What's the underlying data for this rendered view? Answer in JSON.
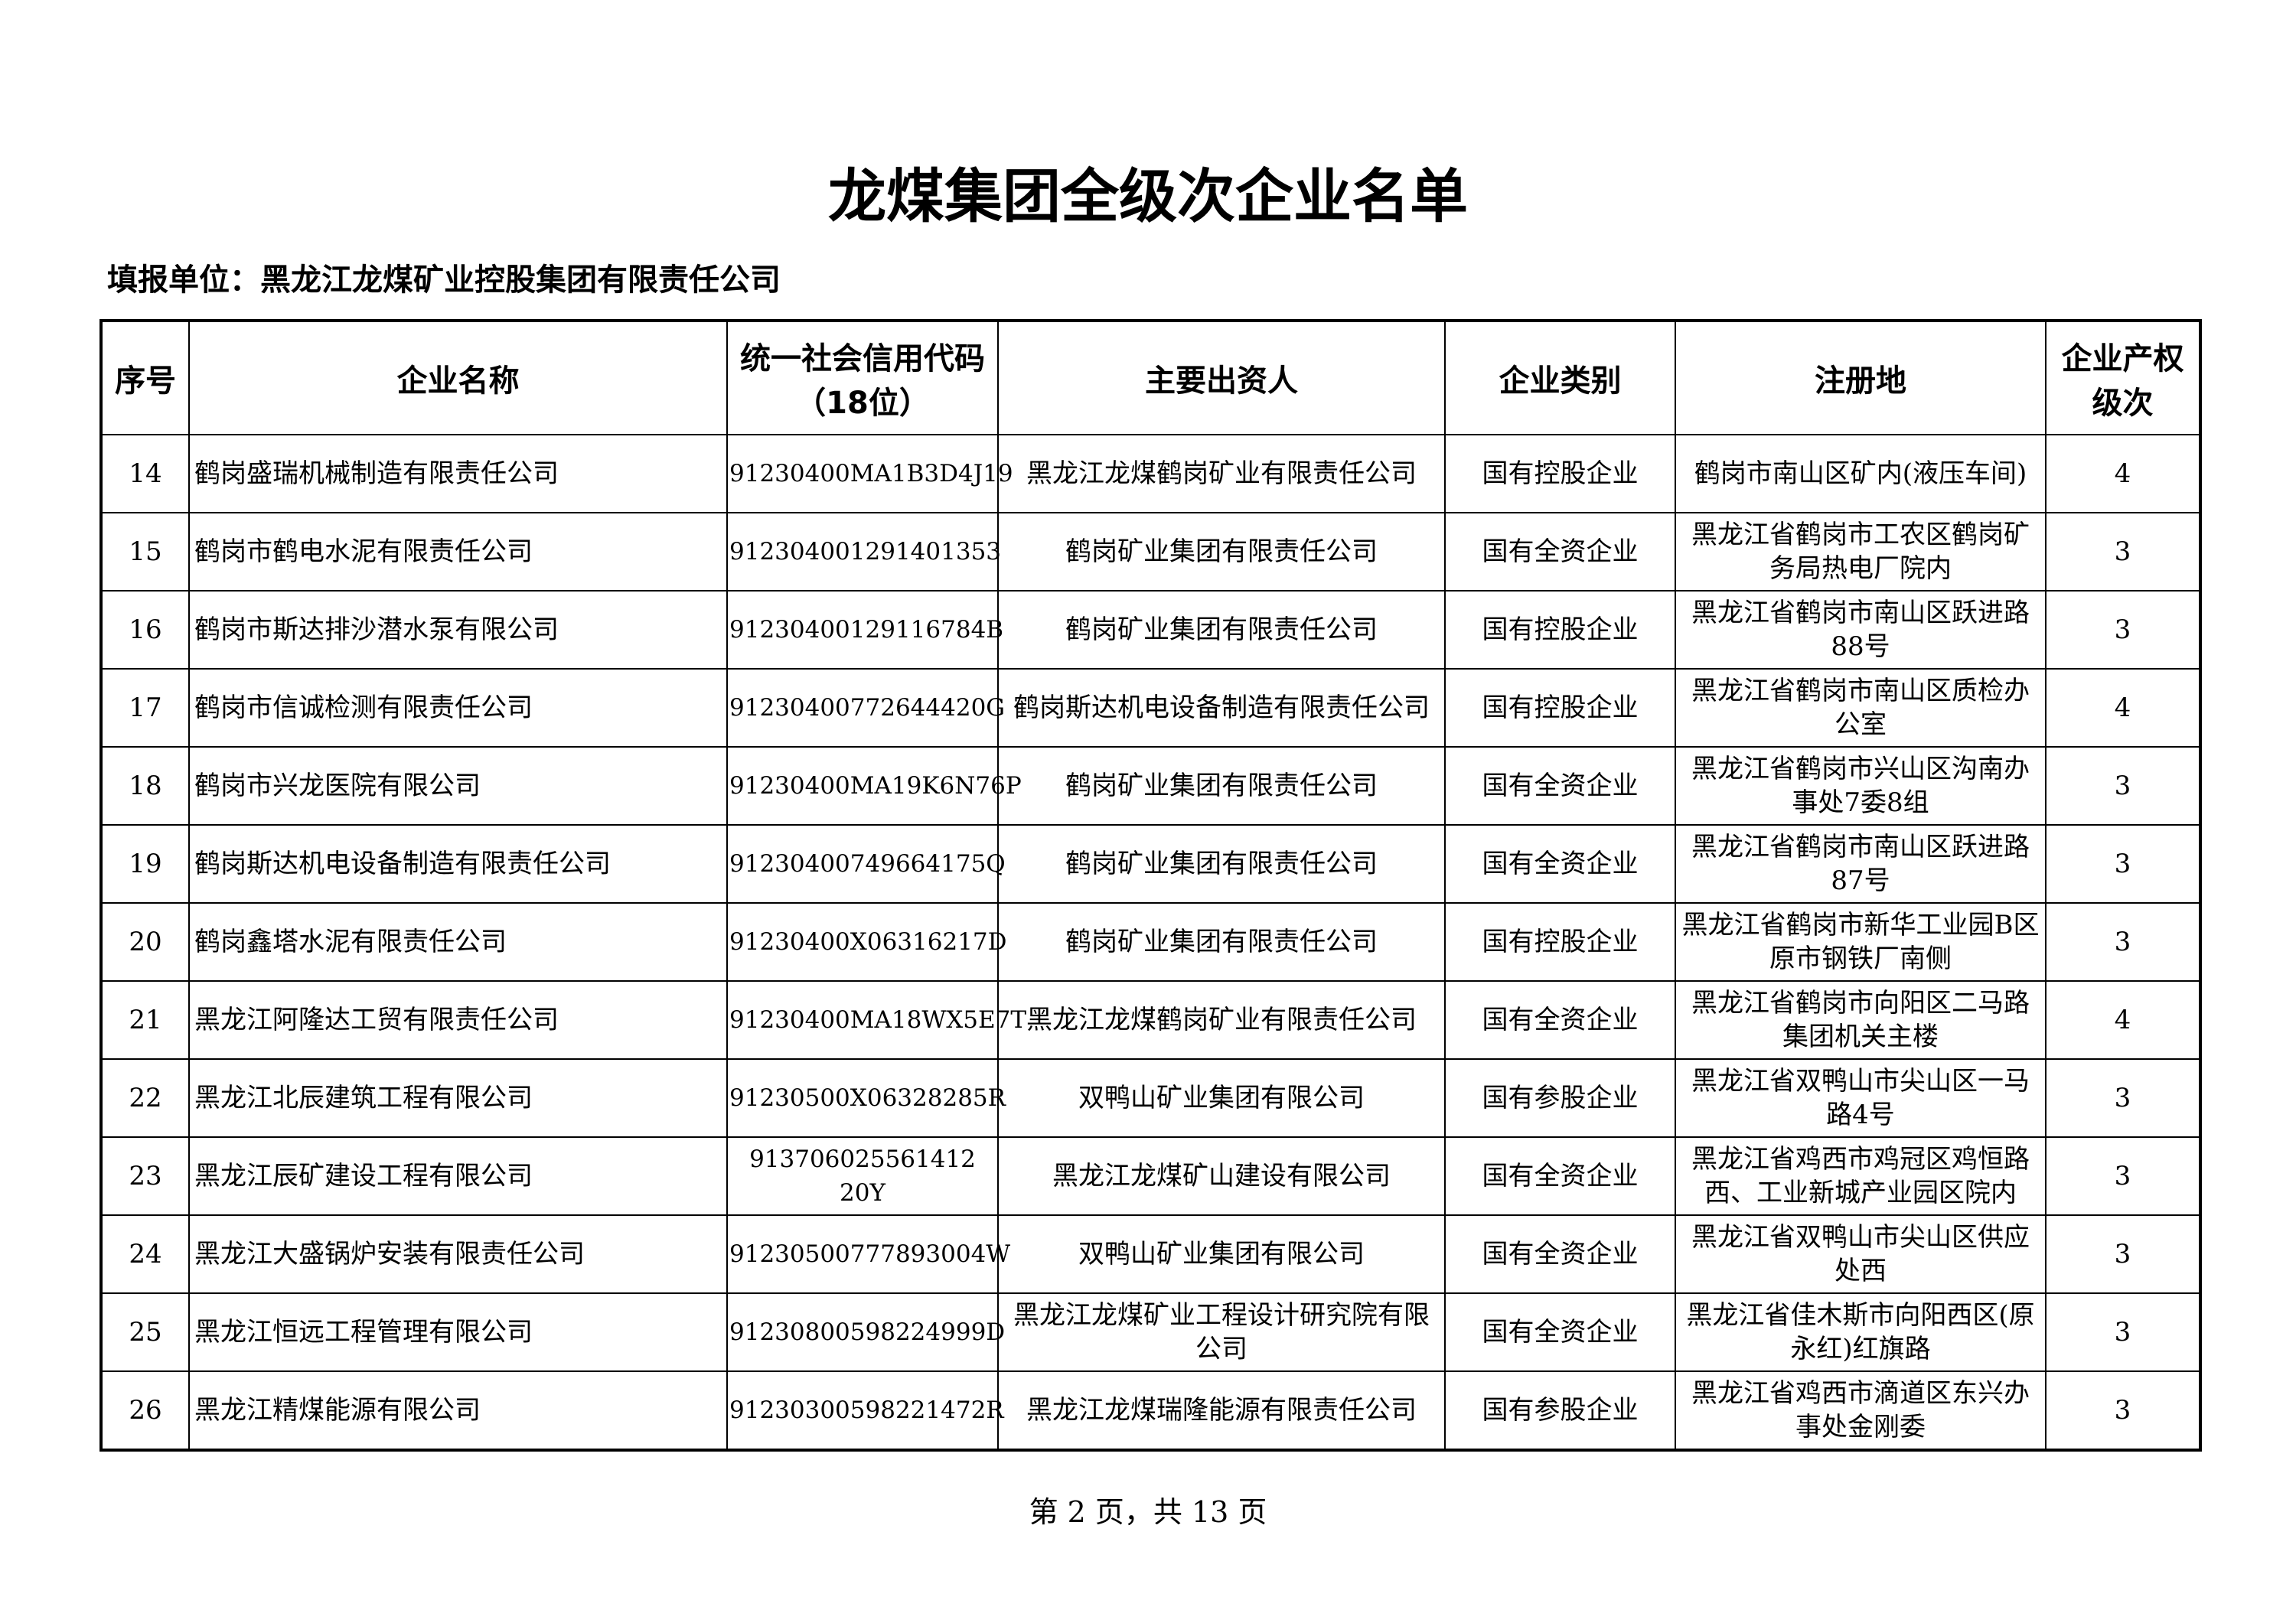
{
  "header": {
    "title": "龙煤集团全级次企业名单",
    "reporting_unit": "填报单位：黑龙江龙煤矿业控股集团有限责任公司"
  },
  "table": {
    "columns": [
      "序号",
      "企业名称",
      "统一社会信用代码（18位）",
      "主要出资人",
      "企业类别",
      "注册地",
      "企业产权级次"
    ],
    "rows": [
      [
        "14",
        "鹤岗盛瑞机械制造有限责任公司",
        "91230400MA1B3D4J19",
        "黑龙江龙煤鹤岗矿业有限责任公司",
        "国有控股企业",
        "鹤岗市南山区矿内(液压车间)",
        "4"
      ],
      [
        "15",
        "鹤岗市鹤电水泥有限责任公司",
        "912304001291401353",
        "鹤岗矿业集团有限责任公司",
        "国有全资企业",
        "黑龙江省鹤岗市工农区鹤岗矿务局热电厂院内",
        "3"
      ],
      [
        "16",
        "鹤岗市斯达排沙潜水泵有限公司",
        "91230400129116784B",
        "鹤岗矿业集团有限责任公司",
        "国有控股企业",
        "黑龙江省鹤岗市南山区跃进路88号",
        "3"
      ],
      [
        "17",
        "鹤岗市信诚检测有限责任公司",
        "91230400772644420G",
        "鹤岗斯达机电设备制造有限责任公司",
        "国有控股企业",
        "黑龙江省鹤岗市南山区质检办公室",
        "4"
      ],
      [
        "18",
        "鹤岗市兴龙医院有限公司",
        "91230400MA19K6N76P",
        "鹤岗矿业集团有限责任公司",
        "国有全资企业",
        "黑龙江省鹤岗市兴山区沟南办事处7委8组",
        "3"
      ],
      [
        "19",
        "鹤岗斯达机电设备制造有限责任公司",
        "91230400749664175Q",
        "鹤岗矿业集团有限责任公司",
        "国有全资企业",
        "黑龙江省鹤岗市南山区跃进路87号",
        "3"
      ],
      [
        "20",
        "鹤岗鑫塔水泥有限责任公司",
        "91230400X06316217D",
        "鹤岗矿业集团有限责任公司",
        "国有控股企业",
        "黑龙江省鹤岗市新华工业园B区原市钢铁厂南侧",
        "3"
      ],
      [
        "21",
        "黑龙江阿隆达工贸有限责任公司",
        "91230400MA18WX5E7T",
        "黑龙江龙煤鹤岗矿业有限责任公司",
        "国有全资企业",
        "黑龙江省鹤岗市向阳区二马路集团机关主楼",
        "4"
      ],
      [
        "22",
        "黑龙江北辰建筑工程有限公司",
        "91230500X06328285R",
        "双鸭山矿业集团有限公司",
        "国有参股企业",
        "黑龙江省双鸭山市尖山区一马路4号",
        "3"
      ],
      [
        "23",
        "黑龙江辰矿建设工程有限公司",
        "913706025561412​20Y",
        "黑龙江龙煤矿山建设有限公司",
        "国有全资企业",
        "黑龙江省鸡西市鸡冠区鸡恒路西、工业新城产业园区院内",
        "3"
      ],
      [
        "24",
        "黑龙江大盛锅炉安装有限责任公司",
        "91230500777893004W",
        "双鸭山矿业集团有限公司",
        "国有全资企业",
        "黑龙江省双鸭山市尖山区供应处西",
        "3"
      ],
      [
        "25",
        "黑龙江恒远工程管理有限公司",
        "91230800598224999D",
        "黑龙江龙煤矿业工程设计研究院有限公司",
        "国有全资企业",
        "黑龙江省佳木斯市向阳西区(原永红)红旗路",
        "3"
      ],
      [
        "26",
        "黑龙江精煤能源有限公司",
        "91230300598221472R",
        "黑龙江龙煤瑞隆能源有限责任公司",
        "国有参股企业",
        "黑龙江省鸡西市滴道区东兴办事处金刚委",
        "3"
      ]
    ]
  },
  "footer": {
    "page": "第 2 页，共 13 页"
  }
}
